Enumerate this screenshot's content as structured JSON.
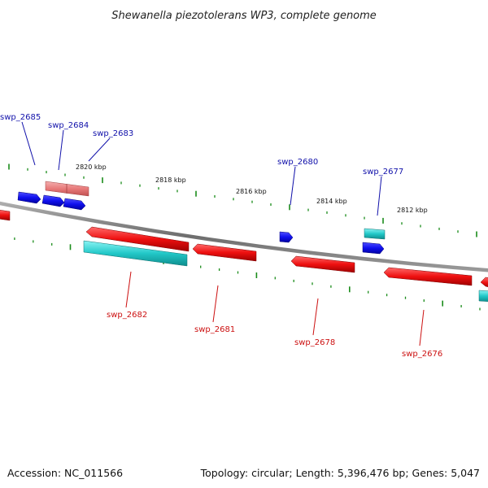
{
  "title": "Shewanella piezotolerans WP3, complete genome",
  "footer": {
    "accession": "Accession: NC_011566",
    "summary": "Topology: circular; Length: 5,396,476 bp; Genes: 5,047"
  },
  "colors": {
    "backbone": "#7a7a7a",
    "tick": "#1a8c1a",
    "forward_cds": "#1010ee",
    "reverse_cds": "#ee1010",
    "forward_alt": "#e87a7a",
    "cyan_feature": "#22c8c8",
    "label_forward": "#1010aa",
    "label_reverse": "#cc1010"
  },
  "scale_labels": [
    "2820 kbp",
    "2818 kbp",
    "2816 kbp",
    "2814 kbp",
    "2812 kbp"
  ],
  "genes_top": [
    "swp_2685",
    "swp_2684",
    "swp_2683",
    "swp_2680",
    "swp_2677"
  ],
  "genes_bottom": [
    "swp_2682",
    "swp_2681",
    "swp_2678",
    "swp_2676"
  ]
}
